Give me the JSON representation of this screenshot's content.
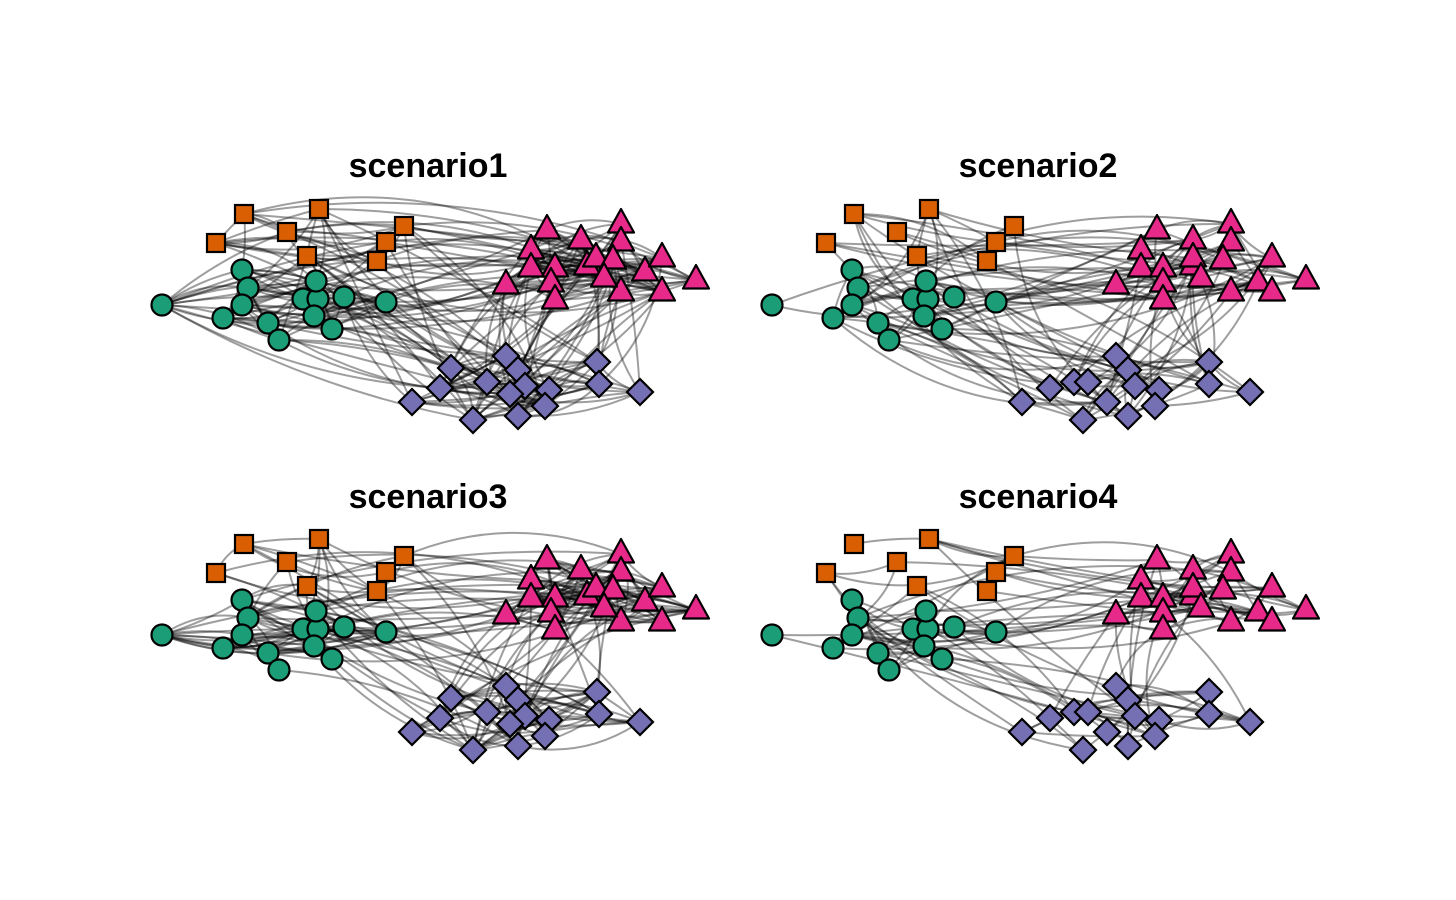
{
  "colors": {
    "group1": "#1b9e77",
    "group2": "#d95f02",
    "group3": "#e7298a",
    "group4": "#7570b3",
    "edge": "#000000",
    "node_border": "#000000"
  },
  "node_shapes": {
    "group1": "circle",
    "group2": "square",
    "group3": "triangle",
    "group4": "diamond"
  },
  "panels": [
    {
      "title": "scenario1"
    },
    {
      "title": "scenario2"
    },
    {
      "title": "scenario3"
    },
    {
      "title": "scenario4"
    }
  ]
}
